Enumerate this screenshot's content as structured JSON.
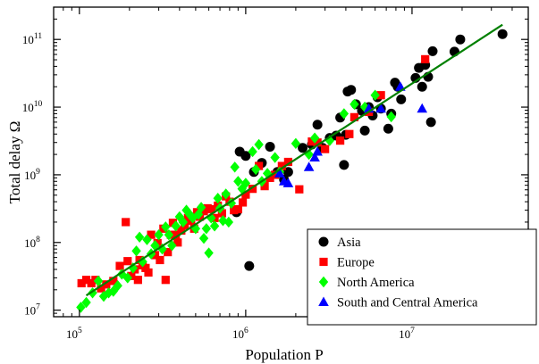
{
  "chart_data": {
    "type": "scatter",
    "xlabel": "Population P",
    "ylabel": "Total delay Ω",
    "xscale": "log",
    "yscale": "log",
    "xlim": [
      70000,
      50000000
    ],
    "ylim": [
      8000000,
      300000000000
    ],
    "grid": false,
    "legend_position": "bottom-right",
    "x_ticks": [
      {
        "value": 100000,
        "base": "10",
        "exp": "5"
      },
      {
        "value": 1000000,
        "base": "10",
        "exp": "6"
      },
      {
        "value": 10000000,
        "base": "10",
        "exp": "7"
      }
    ],
    "y_ticks": [
      {
        "value": 10000000,
        "base": "10",
        "exp": "7"
      },
      {
        "value": 100000000,
        "base": "10",
        "exp": "8"
      },
      {
        "value": 1000000000,
        "base": "10",
        "exp": "9"
      },
      {
        "value": 10000000000,
        "base": "10",
        "exp": "10"
      },
      {
        "value": 100000000000,
        "base": "10",
        "exp": "11"
      }
    ],
    "fit_line": {
      "color": "#008000",
      "points": [
        [
          110000,
          16500000
        ],
        [
          35000000,
          165000000000
        ]
      ]
    },
    "series": [
      {
        "name": "Asia",
        "marker": "circle",
        "color": "#000000",
        "points": [
          [
            880000,
            280000000
          ],
          [
            920000,
            2200000000
          ],
          [
            1000000,
            1900000000
          ],
          [
            1050000,
            45000000
          ],
          [
            1120000,
            1100000000
          ],
          [
            1250000,
            1500000000
          ],
          [
            1400000,
            2600000000
          ],
          [
            1550000,
            1100000000
          ],
          [
            1700000,
            850000000
          ],
          [
            1800000,
            1100000000
          ],
          [
            2200000,
            2500000000
          ],
          [
            2500000,
            2800000000
          ],
          [
            2700000,
            5500000000
          ],
          [
            2900000,
            2500000000
          ],
          [
            3200000,
            3500000000
          ],
          [
            3500000,
            3800000000
          ],
          [
            3700000,
            7000000000
          ],
          [
            3900000,
            1400000000
          ],
          [
            4000000,
            3900000000
          ],
          [
            4100000,
            17000000000
          ],
          [
            4300000,
            18000000000
          ],
          [
            4600000,
            11000000000
          ],
          [
            5000000,
            8800000000
          ],
          [
            5200000,
            4500000000
          ],
          [
            5500000,
            10000000000
          ],
          [
            5800000,
            7500000000
          ],
          [
            6200000,
            14000000000
          ],
          [
            6500000,
            9500000000
          ],
          [
            7200000,
            4800000000
          ],
          [
            7500000,
            8000000000
          ],
          [
            7900000,
            23000000000
          ],
          [
            8200000,
            20000000000
          ],
          [
            8600000,
            13000000000
          ],
          [
            10500000,
            27000000000
          ],
          [
            11000000,
            38000000000
          ],
          [
            11500000,
            20000000000
          ],
          [
            12000000,
            42000000000
          ],
          [
            12500000,
            28000000000
          ],
          [
            13000000,
            6000000000
          ],
          [
            13300000,
            67000000000
          ],
          [
            18000000,
            66000000000
          ],
          [
            19500000,
            100000000000
          ],
          [
            35000000,
            120000000000
          ]
        ]
      },
      {
        "name": "Europe",
        "marker": "square",
        "color": "#ff0000",
        "points": [
          [
            103000,
            25000000
          ],
          [
            110000,
            28000000
          ],
          [
            118000,
            25000000
          ],
          [
            125000,
            28000000
          ],
          [
            135000,
            21000000
          ],
          [
            145000,
            24000000
          ],
          [
            160000,
            27000000
          ],
          [
            175000,
            45000000
          ],
          [
            190000,
            200000000
          ],
          [
            195000,
            53000000
          ],
          [
            205000,
            32000000
          ],
          [
            215000,
            40000000
          ],
          [
            225000,
            28000000
          ],
          [
            230000,
            55000000
          ],
          [
            240000,
            46000000
          ],
          [
            250000,
            42000000
          ],
          [
            260000,
            36000000
          ],
          [
            270000,
            130000000
          ],
          [
            285000,
            65000000
          ],
          [
            295000,
            98000000
          ],
          [
            305000,
            55000000
          ],
          [
            320000,
            160000000
          ],
          [
            330000,
            28000000
          ],
          [
            340000,
            72000000
          ],
          [
            355000,
            130000000
          ],
          [
            365000,
            195000000
          ],
          [
            380000,
            130000000
          ],
          [
            390000,
            100000000
          ],
          [
            410000,
            150000000
          ],
          [
            430000,
            180000000
          ],
          [
            450000,
            230000000
          ],
          [
            470000,
            210000000
          ],
          [
            490000,
            160000000
          ],
          [
            510000,
            280000000
          ],
          [
            530000,
            240000000
          ],
          [
            560000,
            290000000
          ],
          [
            590000,
            320000000
          ],
          [
            620000,
            310000000
          ],
          [
            650000,
            230000000
          ],
          [
            680000,
            350000000
          ],
          [
            720000,
            270000000
          ],
          [
            760000,
            480000000
          ],
          [
            800000,
            400000000
          ],
          [
            850000,
            300000000
          ],
          [
            900000,
            310000000
          ],
          [
            960000,
            390000000
          ],
          [
            1000000,
            510000000
          ],
          [
            1100000,
            620000000
          ],
          [
            1200000,
            1350000000
          ],
          [
            1300000,
            680000000
          ],
          [
            1400000,
            900000000
          ],
          [
            1500000,
            1000000000
          ],
          [
            1650000,
            1350000000
          ],
          [
            1800000,
            1550000000
          ],
          [
            2100000,
            610000000
          ],
          [
            2500000,
            3100000000
          ],
          [
            2700000,
            3000000000
          ],
          [
            3000000,
            2400000000
          ],
          [
            3700000,
            3200000000
          ],
          [
            4200000,
            4000000000
          ],
          [
            4500000,
            7100000000
          ],
          [
            5500000,
            8500000000
          ],
          [
            6500000,
            15000000000
          ],
          [
            12000000,
            51000000000
          ]
        ]
      },
      {
        "name": "North America",
        "marker": "diamond",
        "color": "#00ff00",
        "points": [
          [
            102000,
            11000000
          ],
          [
            110000,
            13000000
          ],
          [
            120000,
            18000000
          ],
          [
            130000,
            27000000
          ],
          [
            140000,
            16000000
          ],
          [
            150000,
            18000000
          ],
          [
            160000,
            19000000
          ],
          [
            170000,
            23000000
          ],
          [
            180000,
            34000000
          ],
          [
            195000,
            30000000
          ],
          [
            210000,
            42000000
          ],
          [
            220000,
            75000000
          ],
          [
            230000,
            120000000
          ],
          [
            240000,
            52000000
          ],
          [
            255000,
            110000000
          ],
          [
            270000,
            68000000
          ],
          [
            285000,
            90000000
          ],
          [
            300000,
            130000000
          ],
          [
            315000,
            80000000
          ],
          [
            330000,
            170000000
          ],
          [
            345000,
            130000000
          ],
          [
            360000,
            90000000
          ],
          [
            380000,
            175000000
          ],
          [
            400000,
            240000000
          ],
          [
            420000,
            200000000
          ],
          [
            440000,
            300000000
          ],
          [
            460000,
            260000000
          ],
          [
            480000,
            230000000
          ],
          [
            500000,
            160000000
          ],
          [
            520000,
            260000000
          ],
          [
            540000,
            330000000
          ],
          [
            560000,
            115000000
          ],
          [
            580000,
            160000000
          ],
          [
            600000,
            70000000
          ],
          [
            620000,
            230000000
          ],
          [
            650000,
            175000000
          ],
          [
            680000,
            450000000
          ],
          [
            700000,
            320000000
          ],
          [
            730000,
            210000000
          ],
          [
            760000,
            520000000
          ],
          [
            790000,
            200000000
          ],
          [
            820000,
            380000000
          ],
          [
            860000,
            1300000000
          ],
          [
            900000,
            800000000
          ],
          [
            950000,
            620000000
          ],
          [
            1000000,
            750000000
          ],
          [
            1100000,
            2200000000
          ],
          [
            1150000,
            1200000000
          ],
          [
            1200000,
            2800000000
          ],
          [
            1250000,
            800000000
          ],
          [
            1350000,
            1050000000
          ],
          [
            1500000,
            1800000000
          ],
          [
            1600000,
            1100000000
          ],
          [
            2000000,
            2900000000
          ],
          [
            2400000,
            2000000000
          ],
          [
            2600000,
            3500000000
          ],
          [
            3200000,
            3200000000
          ],
          [
            3900000,
            8000000000
          ],
          [
            4500000,
            11000000000
          ],
          [
            5200000,
            10000000000
          ],
          [
            6000000,
            15000000000
          ],
          [
            7500000,
            7200000000
          ]
        ]
      },
      {
        "name": "South and Central America",
        "marker": "triangle",
        "color": "#0000ff",
        "points": [
          [
            1600000,
            1050000000
          ],
          [
            1700000,
            800000000
          ],
          [
            1800000,
            750000000
          ],
          [
            2400000,
            1300000000
          ],
          [
            2600000,
            1800000000
          ],
          [
            2700000,
            2200000000
          ],
          [
            5500000,
            9500000000
          ],
          [
            6500000,
            9500000000
          ],
          [
            8500000,
            20000000000
          ],
          [
            11500000,
            9500000000
          ]
        ]
      }
    ]
  }
}
